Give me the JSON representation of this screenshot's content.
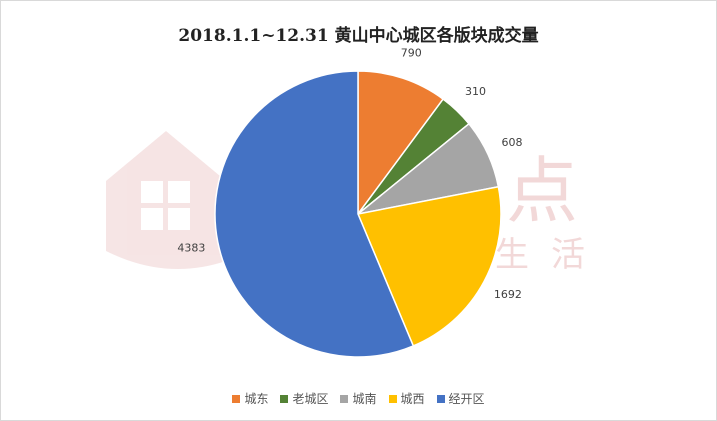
{
  "chart_data": {
    "type": "pie",
    "title": "2018.1.1~12.31 黄山中心城区各版块成交量",
    "categories": [
      "城东",
      "老城区",
      "城南",
      "城西",
      "经开区"
    ],
    "values": [
      790,
      310,
      608,
      1692,
      4383
    ],
    "colors": [
      "#ED7D31",
      "#548235",
      "#A5A5A5",
      "#FFC000",
      "#4472C4"
    ],
    "start_angle_deg": 0,
    "direction": "clockwise",
    "legend_position": "bottom"
  },
  "watermark": {
    "brand": "搜狐焦点",
    "slogan": "爱家，爱生活"
  }
}
